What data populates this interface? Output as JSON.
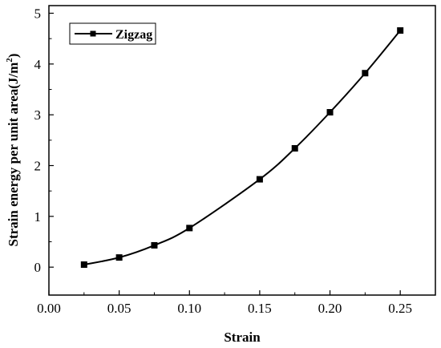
{
  "chart_data": {
    "type": "line",
    "title": "",
    "xlabel": "Strain",
    "ylabel_main": "Strain energy per unit area(J/m",
    "ylabel_sup": "2",
    "ylabel_tail": ")",
    "xlim": [
      0.0,
      0.275
    ],
    "ylim": [
      -0.55,
      5.15
    ],
    "x_ticks": [
      0.0,
      0.05,
      0.1,
      0.15,
      0.2,
      0.25
    ],
    "x_tick_labels": [
      "0.00",
      "0.05",
      "0.10",
      "0.15",
      "0.20",
      "0.25"
    ],
    "y_ticks": [
      0,
      1,
      2,
      3,
      4,
      5
    ],
    "y_tick_labels": [
      "0",
      "1",
      "2",
      "3",
      "4",
      "5"
    ],
    "grid": false,
    "legend_position": "top-left",
    "marker": "square",
    "series": [
      {
        "name": "Zigzag",
        "color": "#000000",
        "x": [
          0.025,
          0.05,
          0.075,
          0.1,
          0.15,
          0.175,
          0.2,
          0.225,
          0.25
        ],
        "y": [
          0.05,
          0.19,
          0.43,
          0.77,
          1.73,
          2.34,
          3.05,
          3.82,
          4.66
        ]
      }
    ]
  }
}
